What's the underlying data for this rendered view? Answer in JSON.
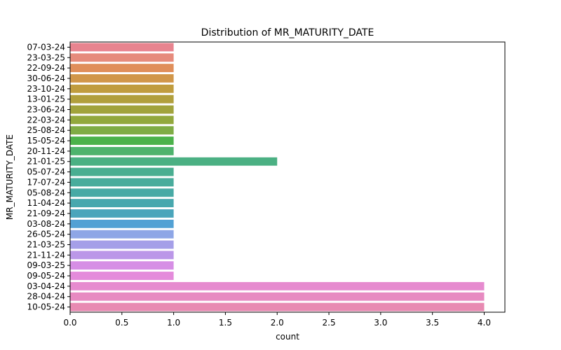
{
  "chart_data": {
    "type": "bar",
    "orientation": "horizontal",
    "title": "Distribution of MR_MATURITY_DATE",
    "xlabel": "count",
    "ylabel": "MR_MATURITY_DATE",
    "xlim": [
      0,
      4.2
    ],
    "xticks": [
      "0.0",
      "0.5",
      "1.0",
      "1.5",
      "2.0",
      "2.5",
      "3.0",
      "3.5",
      "4.0"
    ],
    "grid": false,
    "categories": [
      "07-03-24",
      "23-03-25",
      "22-09-24",
      "30-06-24",
      "23-10-24",
      "13-01-25",
      "23-06-24",
      "22-03-24",
      "25-08-24",
      "15-05-24",
      "20-11-24",
      "21-01-25",
      "05-07-24",
      "17-07-24",
      "05-08-24",
      "11-04-24",
      "21-09-24",
      "03-08-24",
      "26-05-24",
      "21-03-25",
      "21-11-24",
      "09-03-25",
      "09-05-24",
      "03-04-24",
      "28-04-24",
      "10-05-24"
    ],
    "values": [
      1,
      1,
      1,
      1,
      1,
      1,
      1,
      1,
      1,
      1,
      1,
      2,
      1,
      1,
      1,
      1,
      1,
      1,
      1,
      1,
      1,
      1,
      1,
      4,
      4,
      4
    ],
    "colors": [
      "#e8848f",
      "#e68b7c",
      "#e08e5a",
      "#d19649",
      "#c09c3e",
      "#b19f3c",
      "#a1a33c",
      "#92a83d",
      "#7fac45",
      "#4bb24b",
      "#4eb36d",
      "#4bb083",
      "#4aae91",
      "#49ac9c",
      "#48aaa5",
      "#48a8ae",
      "#4aa5bb",
      "#52a1d4",
      "#8ea6e6",
      "#a59fe8",
      "#bb97e8",
      "#d68ee5",
      "#e48bdb",
      "#e68bcf",
      "#e78ac1",
      "#e88ab2"
    ]
  }
}
